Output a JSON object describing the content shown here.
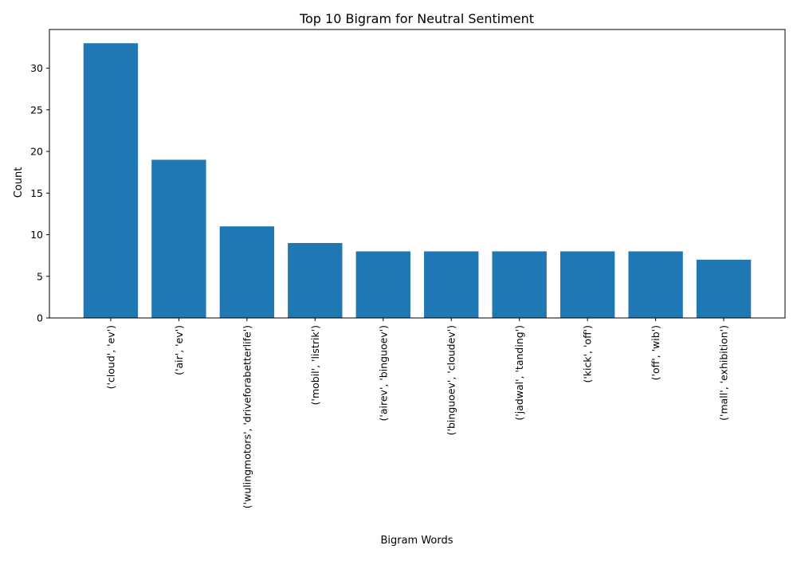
{
  "chart_data": {
    "type": "bar",
    "title": "Top 10 Bigram for Neutral Sentiment",
    "xlabel": "Bigram Words",
    "ylabel": "Count",
    "categories": [
      "('cloud', 'ev')",
      "('air', 'ev')",
      "('wulingmotors', 'driveforabetterlife')",
      "('mobil', 'listrik')",
      "('airev', 'binguoev')",
      "('binguoev', 'cloudev')",
      "('jadwal', 'tanding')",
      "('kick', 'off')",
      "('off', 'wib')",
      "('mall', 'exhibition')"
    ],
    "values": [
      33,
      19,
      11,
      9,
      8,
      8,
      8,
      8,
      8,
      7
    ],
    "ylim": [
      0,
      34.65
    ],
    "yticks": [
      0,
      5,
      10,
      15,
      20,
      25,
      30
    ],
    "bar_color": "#1f77b4",
    "grid": false,
    "x_tick_rotation": 90
  }
}
